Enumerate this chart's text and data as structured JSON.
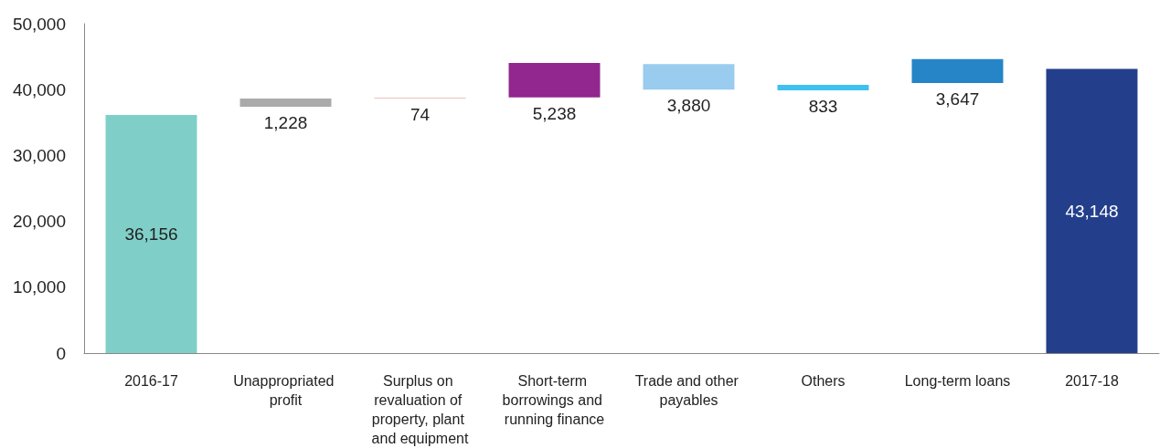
{
  "chart_data": {
    "type": "bar",
    "categories": [
      "2016-17",
      "Unappropriated profit",
      "Surplus on revaluation of property, plant and equipment",
      "Short-term borrowings and running finance",
      "Trade and other payables",
      "Others",
      "Long-term loans",
      "2017-18"
    ],
    "values": [
      36156,
      1228,
      74,
      5238,
      3880,
      833,
      3647,
      43148
    ],
    "value_labels": [
      "36,156",
      "1,228",
      "74",
      "5,238",
      "3,880",
      "833",
      "3,647",
      "43,148"
    ],
    "base": [
      0,
      37400,
      38700,
      38800,
      40000,
      39900,
      41000,
      0
    ],
    "colors": [
      "#7fcfc8",
      "#aaaaaa",
      "#d98278",
      "#92278f",
      "#99ccee",
      "#3fc0ef",
      "#2585c7",
      "#233f8c"
    ],
    "ylim": [
      0,
      50000
    ],
    "yticks": [
      0,
      {
        "value": 10000,
        "label": "10,000"
      },
      {
        "value": 20000,
        "label": "20,000"
      },
      {
        "value": 30000,
        "label": "30,000"
      },
      {
        "value": 40000,
        "label": "40,000"
      },
      {
        "value": 50000,
        "label": "50,000"
      }
    ],
    "grid": false
  }
}
